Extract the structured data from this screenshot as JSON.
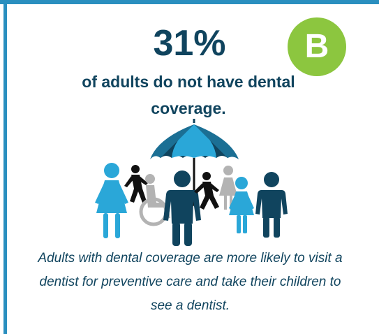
{
  "badge": {
    "letter": "B",
    "color": "#8cc63f"
  },
  "stat": {
    "value": "31%"
  },
  "headline": {
    "text": "of adults do not have dental coverage."
  },
  "caption": {
    "text": "Adults with dental coverage are more likely to visit a dentist for preventive care and take their children to see a dentist."
  },
  "colors": {
    "navy": "#10445e",
    "blue": "#2a8fbf",
    "light_blue": "#2aa7d8",
    "gray": "#b3b3b3",
    "black": "#111111"
  },
  "illustration": {
    "icons": [
      "umbrella-icon",
      "woman-icon",
      "runner-icon",
      "wheelchair-user-icon",
      "man-icon",
      "girl-icon",
      "boy-icon"
    ]
  }
}
